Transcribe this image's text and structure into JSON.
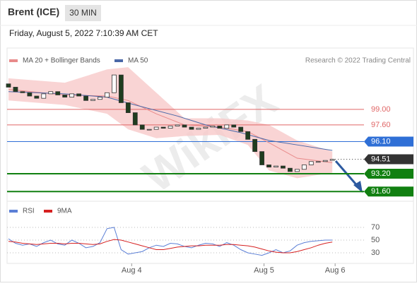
{
  "header": {
    "title": "Brent (ICE)",
    "timeframe": "30 MIN",
    "date": "Friday, August 5, 2022 7:10:39 AM CET"
  },
  "chart_data": [
    {
      "type": "candlestick",
      "credit": "Research © 2022 Trading Central",
      "watermark": "WikiFX",
      "x": [
        0,
        1,
        2,
        3,
        4,
        5,
        6,
        7,
        8,
        9,
        10,
        11,
        12,
        13,
        14,
        15,
        16,
        17,
        18,
        19,
        20,
        21,
        22,
        23,
        24,
        25,
        26,
        27,
        28,
        29,
        30,
        31,
        32,
        33,
        34,
        35,
        36,
        37,
        38,
        39,
        40,
        41,
        42,
        43,
        44,
        45,
        46
      ],
      "open": [
        101.3,
        101.0,
        100.6,
        100.5,
        100.2,
        100.0,
        100.4,
        100.6,
        100.3,
        100.1,
        100.4,
        100.2,
        99.8,
        99.9,
        100.1,
        100.5,
        102.1,
        99.6,
        98.7,
        97.6,
        97.2,
        97.2,
        97.4,
        97.3,
        97.5,
        97.6,
        97.4,
        97.2,
        97.3,
        97.4,
        97.5,
        97.3,
        97.6,
        97.4,
        97.0,
        96.3,
        95.2,
        94.0,
        93.8,
        93.9,
        93.7,
        93.4,
        93.6,
        94.0,
        94.3,
        94.3,
        94.4
      ],
      "close": [
        101.0,
        100.6,
        100.5,
        100.2,
        100.0,
        100.4,
        100.6,
        100.3,
        100.1,
        100.4,
        100.2,
        99.8,
        99.9,
        100.1,
        100.5,
        102.1,
        99.6,
        98.7,
        97.6,
        97.2,
        97.2,
        97.4,
        97.3,
        97.5,
        97.6,
        97.4,
        97.2,
        97.3,
        97.4,
        97.5,
        97.3,
        97.6,
        97.4,
        97.0,
        96.3,
        95.2,
        94.0,
        93.8,
        93.9,
        93.7,
        93.4,
        93.6,
        94.0,
        94.3,
        94.3,
        94.4,
        94.5
      ],
      "up_color": "#ffffff",
      "down_color": "#1f3d1f",
      "outline_color": "#333333",
      "series": [
        {
          "name": "MA 20 + Bollinger Bands",
          "color": "#e88a8a",
          "band_color": "#f7c9c9",
          "x": [
            0,
            8,
            14,
            17,
            21,
            25,
            30,
            34,
            37,
            41,
            46
          ],
          "values": [
            100.8,
            100.3,
            100.2,
            99.8,
            98.6,
            97.6,
            97.4,
            97.0,
            96.0,
            94.6,
            94.2
          ],
          "upper": [
            101.8,
            101.4,
            102.6,
            102.8,
            100.5,
            98.2,
            98.2,
            98.0,
            97.6,
            96.2,
            95.2
          ],
          "lower": [
            99.8,
            99.4,
            98.6,
            97.2,
            96.4,
            96.6,
            96.7,
            95.8,
            93.5,
            92.8,
            93.3
          ]
        },
        {
          "name": "MA 50",
          "color": "#4a68a8",
          "x": [
            0,
            8,
            14,
            18,
            24,
            28,
            33,
            37,
            41,
            46
          ],
          "values": [
            100.6,
            100.4,
            100.1,
            99.4,
            98.4,
            97.6,
            96.9,
            96.2,
            95.8,
            95.3
          ]
        }
      ],
      "levels": [
        {
          "value": 99,
          "label": "99.00",
          "color": "#e06666",
          "line": "solid",
          "boxed": false
        },
        {
          "value": 97.6,
          "label": "97.60",
          "color": "#e06666",
          "line": "solid",
          "boxed": false
        },
        {
          "value": 96.1,
          "label": "96.10",
          "color": "#2f6fd6",
          "line": "solid",
          "boxed": true
        },
        {
          "value": 94.51,
          "label": "94.51",
          "color": "#333333",
          "line": "dotted",
          "boxed": true
        },
        {
          "value": 93.2,
          "label": "93.20",
          "color": "#118011",
          "line": "solid",
          "boxed": true
        },
        {
          "value": 91.6,
          "label": "91.60",
          "color": "#118011",
          "line": "solid",
          "boxed": true
        }
      ],
      "xlim": [
        -0.2,
        50.5
      ],
      "ylim": [
        90.85,
        104.4
      ],
      "xticks": [
        {
          "value": 17.5,
          "label": "Aug 4"
        },
        {
          "value": 36.3,
          "label": "Aug 5"
        },
        {
          "value": 46.4,
          "label": "Aug 6"
        }
      ]
    },
    {
      "type": "line",
      "x": [
        0,
        1,
        2,
        3,
        4,
        5,
        6,
        7,
        8,
        9,
        10,
        11,
        12,
        13,
        14,
        15,
        16,
        17,
        18,
        19,
        20,
        21,
        22,
        23,
        24,
        25,
        26,
        27,
        28,
        29,
        30,
        31,
        32,
        33,
        34,
        35,
        36,
        37,
        38,
        39,
        40,
        41,
        42,
        43,
        44,
        45,
        46
      ],
      "series": [
        {
          "name": "RSI",
          "color": "#5b7fd6",
          "values": [
            52,
            45,
            42,
            44,
            40,
            46,
            50,
            44,
            42,
            50,
            45,
            38,
            40,
            46,
            68,
            70,
            35,
            28,
            30,
            32,
            38,
            42,
            40,
            45,
            44,
            40,
            38,
            42,
            45,
            44,
            40,
            46,
            42,
            35,
            30,
            28,
            26,
            30,
            35,
            30,
            33,
            42,
            46,
            48,
            49,
            50,
            50
          ]
        },
        {
          "name": "9MA",
          "color": "#d62020",
          "values": [
            48,
            47,
            45,
            44,
            43,
            44,
            45,
            45,
            44,
            45,
            45,
            44,
            43,
            44,
            48,
            51,
            50,
            47,
            44,
            41,
            38,
            35,
            35,
            37,
            39,
            40,
            41,
            41,
            42,
            42,
            42,
            43,
            43,
            42,
            41,
            39,
            36,
            33,
            31,
            30,
            30,
            32,
            35,
            38,
            42,
            45,
            47
          ]
        }
      ],
      "xlim": [
        -0.2,
        50.5
      ],
      "ylim": [
        16.7,
        83.3
      ],
      "yticks": [
        70,
        50,
        30
      ]
    }
  ]
}
